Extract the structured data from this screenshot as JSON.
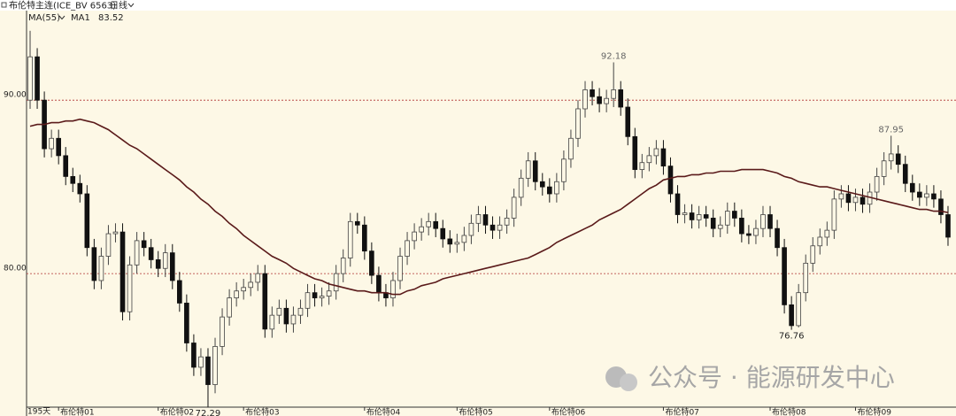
{
  "chart_data": {
    "type": "candlestick",
    "title": "布伦特主连(ICE_BV 6563)",
    "period": "日线",
    "indicator": "MA(55)",
    "period_count": "195天",
    "watermark": "公众号 · 能源研发中心",
    "up_color": "#444444",
    "down_color": "#111111",
    "grid": true,
    "grid_color": "#b03030",
    "ylim": [
      72.3,
      94.5
    ],
    "yticks": [
      {
        "value": 80,
        "label": "80.00"
      },
      {
        "value": 90,
        "label": "90.00"
      }
    ],
    "xticks": [
      {
        "value": 4,
        "label": "布伦特01"
      },
      {
        "value": 18,
        "label": "布伦特02"
      },
      {
        "value": 30,
        "label": "布伦特03"
      },
      {
        "value": 47,
        "label": "布伦特04"
      },
      {
        "value": 60,
        "label": "布伦特05"
      },
      {
        "value": 73,
        "label": "布伦特06"
      },
      {
        "value": 89,
        "label": "布伦特07"
      },
      {
        "value": 104,
        "label": "布伦特08"
      },
      {
        "value": 116,
        "label": "布伦特09"
      }
    ],
    "open": [
      90.0,
      92.5,
      90.0,
      87.2,
      87.8,
      86.8,
      85.6,
      85.2,
      84.6,
      81.5,
      79.6,
      81.0,
      82.3,
      82.4,
      77.8,
      80.5,
      81.9,
      81.5,
      80.8,
      80.3,
      81.2,
      79.6,
      78.3,
      76.0,
      74.6,
      75.2,
      73.6,
      75.8,
      77.5,
      78.6,
      79.0,
      79.2,
      79.5,
      80.0,
      76.8,
      77.6,
      78.0,
      77.1,
      77.6,
      78.0,
      78.9,
      78.6,
      78.7,
      79.0,
      80.0,
      80.9,
      83.0,
      82.8,
      81.3,
      79.9,
      78.9,
      78.6,
      79.6,
      81.0,
      81.9,
      82.4,
      82.7,
      83.0,
      82.6,
      82.0,
      81.7,
      81.8,
      82.2,
      82.9,
      83.4,
      82.8,
      82.5,
      82.8,
      83.2,
      84.4,
      85.5,
      86.5,
      85.3,
      85.0,
      84.6,
      85.3,
      86.6,
      87.8,
      89.5,
      90.6,
      90.2,
      89.8,
      90.1,
      90.6,
      89.6,
      87.9,
      86.0,
      86.4,
      86.8,
      87.2,
      86.2,
      84.6,
      83.4,
      83.5,
      83.1,
      83.4,
      83.2,
      82.6,
      82.8,
      83.6,
      83.2,
      82.3,
      82.2,
      82.6,
      83.4,
      82.6,
      81.5,
      78.2,
      77.0,
      78.9,
      80.6,
      81.6,
      82.1,
      82.5,
      84.3,
      84.6,
      84.1,
      84.4,
      84.0,
      84.7,
      85.6,
      86.5,
      86.9,
      86.3,
      85.2,
      84.7,
      84.4,
      84.6,
      84.3,
      83.4
    ],
    "high": [
      94.0,
      93.0,
      90.5,
      88.3,
      88.3,
      87.3,
      86.1,
      85.7,
      85.1,
      82.0,
      81.5,
      82.8,
      82.9,
      82.9,
      81.0,
      82.4,
      82.4,
      82.0,
      81.3,
      81.7,
      81.7,
      80.1,
      78.8,
      76.5,
      75.7,
      75.7,
      76.3,
      78.0,
      79.1,
      79.5,
      79.7,
      80.0,
      80.5,
      80.5,
      78.1,
      78.5,
      78.5,
      78.1,
      78.5,
      79.4,
      79.4,
      79.2,
      79.5,
      80.5,
      81.4,
      83.5,
      83.5,
      83.3,
      81.8,
      80.4,
      79.4,
      80.1,
      81.5,
      82.4,
      82.9,
      83.2,
      83.5,
      83.5,
      83.1,
      82.5,
      82.3,
      82.7,
      83.4,
      83.9,
      83.9,
      83.3,
      83.3,
      83.7,
      84.9,
      86.0,
      87.0,
      87.0,
      85.8,
      85.5,
      85.8,
      87.1,
      88.3,
      90.0,
      91.1,
      91.1,
      90.7,
      90.6,
      92.18,
      91.1,
      90.1,
      88.4,
      86.9,
      87.3,
      87.7,
      87.7,
      86.7,
      85.1,
      84.0,
      84.0,
      83.9,
      83.9,
      83.7,
      83.3,
      84.1,
      84.1,
      83.7,
      82.8,
      83.1,
      83.9,
      83.9,
      83.1,
      82.0,
      78.7,
      79.4,
      81.1,
      82.1,
      82.6,
      83.0,
      84.8,
      85.1,
      85.1,
      84.9,
      84.9,
      85.2,
      86.1,
      87.0,
      87.95,
      87.4,
      86.8,
      85.7,
      85.2,
      85.1,
      85.1,
      84.8,
      83.9
    ],
    "low": [
      89.5,
      89.5,
      86.7,
      86.7,
      86.3,
      85.1,
      84.7,
      84.1,
      81.0,
      79.1,
      79.1,
      80.5,
      81.8,
      77.3,
      77.3,
      80.0,
      81.0,
      80.3,
      79.8,
      79.8,
      79.1,
      77.8,
      75.5,
      74.1,
      74.1,
      72.29,
      73.1,
      75.3,
      77.0,
      78.1,
      78.5,
      78.7,
      79.0,
      76.3,
      76.3,
      77.1,
      76.6,
      76.6,
      77.1,
      77.5,
      78.1,
      78.1,
      78.2,
      78.5,
      79.5,
      80.4,
      82.3,
      80.8,
      79.4,
      78.4,
      78.1,
      78.1,
      79.1,
      80.5,
      81.4,
      81.9,
      82.2,
      82.1,
      81.5,
      81.2,
      81.2,
      81.3,
      81.7,
      82.4,
      82.3,
      82.0,
      82.0,
      82.3,
      82.7,
      83.9,
      85.0,
      84.8,
      84.5,
      84.1,
      84.1,
      84.8,
      86.1,
      87.3,
      89.0,
      89.7,
      89.3,
      89.3,
      89.6,
      89.1,
      87.4,
      85.5,
      85.5,
      85.9,
      86.3,
      85.7,
      84.1,
      82.9,
      82.9,
      82.6,
      82.6,
      82.7,
      82.1,
      82.1,
      82.3,
      82.7,
      81.8,
      81.7,
      81.7,
      82.1,
      82.1,
      81.0,
      77.7,
      76.76,
      76.9,
      78.4,
      80.1,
      81.1,
      81.6,
      82.0,
      83.8,
      83.6,
      83.6,
      83.5,
      83.5,
      84.2,
      85.1,
      86.0,
      85.8,
      84.7,
      84.2,
      83.9,
      83.9,
      83.8,
      82.9,
      81.6
    ],
    "close": [
      92.5,
      90.0,
      87.2,
      87.8,
      86.8,
      85.6,
      85.2,
      84.6,
      81.5,
      79.6,
      81.0,
      82.3,
      82.4,
      77.8,
      80.5,
      81.9,
      81.5,
      80.8,
      80.3,
      81.2,
      79.6,
      78.3,
      76.0,
      74.6,
      75.2,
      73.6,
      75.8,
      77.5,
      78.6,
      79.0,
      79.2,
      79.5,
      80.0,
      76.8,
      77.6,
      78.0,
      77.1,
      77.6,
      78.0,
      78.9,
      78.6,
      78.7,
      79.0,
      80.0,
      80.9,
      83.0,
      82.8,
      81.3,
      79.9,
      78.9,
      78.6,
      79.6,
      81.0,
      81.9,
      82.4,
      82.7,
      83.0,
      82.6,
      82.0,
      81.7,
      81.8,
      82.2,
      82.9,
      83.4,
      82.8,
      82.5,
      82.8,
      83.2,
      84.4,
      85.5,
      86.5,
      85.3,
      85.0,
      84.6,
      85.3,
      86.6,
      87.8,
      89.5,
      90.6,
      90.2,
      89.8,
      90.1,
      90.6,
      89.6,
      87.9,
      86.0,
      86.4,
      86.8,
      87.2,
      86.2,
      84.6,
      83.4,
      83.5,
      83.1,
      83.4,
      83.2,
      82.6,
      82.8,
      83.6,
      83.2,
      82.3,
      82.2,
      82.6,
      83.4,
      82.6,
      81.5,
      78.2,
      77.0,
      78.9,
      80.6,
      81.6,
      82.1,
      82.5,
      84.3,
      84.6,
      84.1,
      84.4,
      84.0,
      84.7,
      85.6,
      86.5,
      86.9,
      86.3,
      85.2,
      84.7,
      84.4,
      84.6,
      84.3,
      83.4,
      82.1
    ],
    "ma": {
      "name": "MA1",
      "color": "#5a1a1a",
      "values": [
        88.5,
        88.6,
        88.6,
        88.7,
        88.7,
        88.8,
        88.8,
        88.9,
        88.8,
        88.7,
        88.5,
        88.3,
        88.0,
        87.7,
        87.4,
        87.2,
        86.9,
        86.6,
        86.3,
        86.0,
        85.7,
        85.4,
        85.0,
        84.7,
        84.3,
        84.0,
        83.6,
        83.3,
        82.9,
        82.6,
        82.2,
        81.9,
        81.6,
        81.3,
        81.0,
        80.8,
        80.6,
        80.3,
        80.1,
        79.9,
        79.7,
        79.6,
        79.4,
        79.3,
        79.2,
        79.1,
        79.0,
        79.0,
        78.9,
        78.9,
        78.9,
        78.8,
        78.8,
        79.0,
        79.1,
        79.3,
        79.4,
        79.5,
        79.7,
        79.8,
        79.9,
        80.0,
        80.1,
        80.2,
        80.3,
        80.4,
        80.5,
        80.6,
        80.7,
        80.8,
        80.9,
        81.1,
        81.3,
        81.5,
        81.8,
        82.0,
        82.2,
        82.4,
        82.6,
        82.8,
        83.1,
        83.3,
        83.5,
        83.7,
        84.0,
        84.3,
        84.6,
        84.9,
        85.1,
        85.4,
        85.5,
        85.6,
        85.6,
        85.7,
        85.7,
        85.8,
        85.8,
        85.9,
        85.9,
        85.9,
        86.0,
        86.0,
        86.0,
        86.0,
        85.9,
        85.8,
        85.6,
        85.5,
        85.3,
        85.2,
        85.1,
        85.0,
        85.0,
        84.9,
        84.8,
        84.7,
        84.6,
        84.5,
        84.4,
        84.3,
        84.2,
        84.1,
        84.0,
        83.9,
        83.8,
        83.7,
        83.7,
        83.6,
        83.6,
        83.52
      ]
    }
  }
}
